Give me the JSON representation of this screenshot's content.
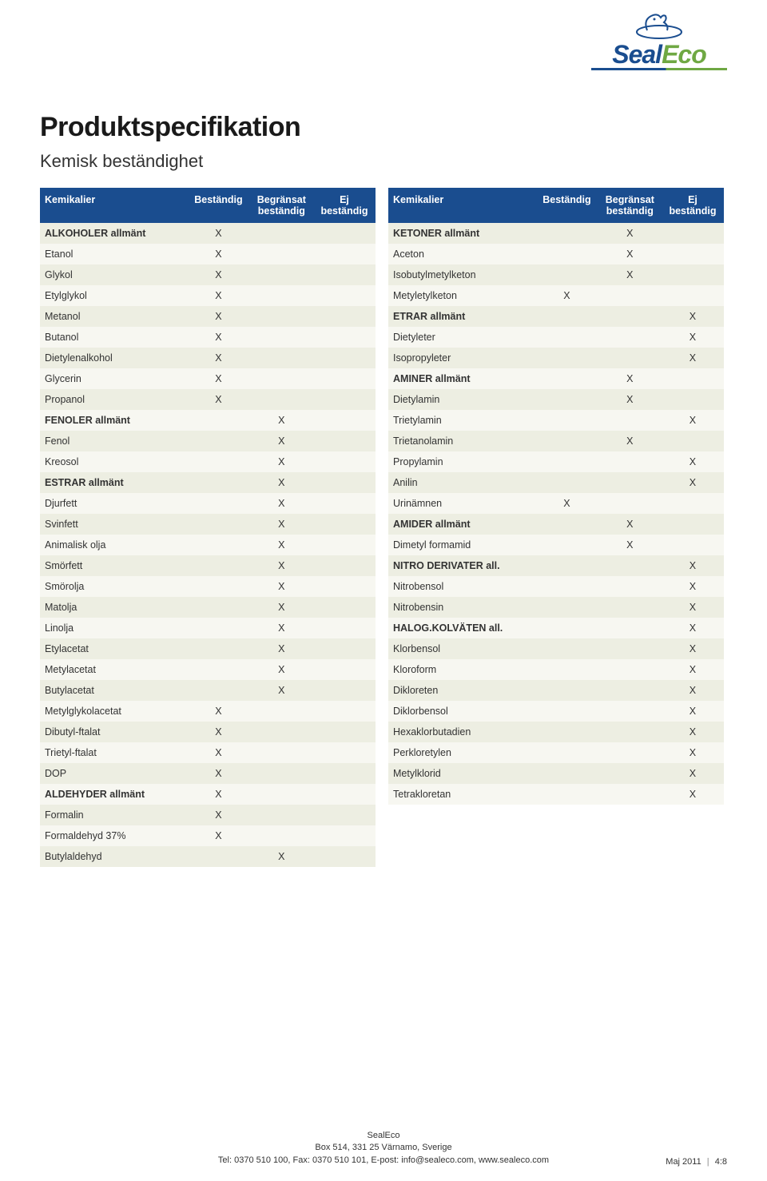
{
  "brand": {
    "seal": "Seal",
    "eco": "Eco"
  },
  "title": "Produktspecifikation",
  "subtitle": "Kemisk beständighet",
  "headers": {
    "name": "Kemikalier",
    "c1": "Beständig",
    "c2a": "Begränsat",
    "c2b": "beständig",
    "c3a": "Ej",
    "c3b": "beständig"
  },
  "leftRows": [
    {
      "name": "ALKOHOLER allmänt",
      "bold": true,
      "c1": "X",
      "c2": "",
      "c3": ""
    },
    {
      "name": "Etanol",
      "c1": "X",
      "c2": "",
      "c3": ""
    },
    {
      "name": "Glykol",
      "c1": "X",
      "c2": "",
      "c3": ""
    },
    {
      "name": "Etylglykol",
      "c1": "X",
      "c2": "",
      "c3": ""
    },
    {
      "name": "Metanol",
      "c1": "X",
      "c2": "",
      "c3": ""
    },
    {
      "name": "Butanol",
      "c1": "X",
      "c2": "",
      "c3": ""
    },
    {
      "name": "Dietylenalkohol",
      "c1": "X",
      "c2": "",
      "c3": ""
    },
    {
      "name": "Glycerin",
      "c1": "X",
      "c2": "",
      "c3": ""
    },
    {
      "name": "Propanol",
      "c1": "X",
      "c2": "",
      "c3": ""
    },
    {
      "name": "FENOLER allmänt",
      "bold": true,
      "c1": "",
      "c2": "X",
      "c3": ""
    },
    {
      "name": "Fenol",
      "c1": "",
      "c2": "X",
      "c3": ""
    },
    {
      "name": "Kreosol",
      "c1": "",
      "c2": "X",
      "c3": ""
    },
    {
      "name": "ESTRAR allmänt",
      "bold": true,
      "c1": "",
      "c2": "X",
      "c3": ""
    },
    {
      "name": "Djurfett",
      "c1": "",
      "c2": "X",
      "c3": ""
    },
    {
      "name": "Svinfett",
      "c1": "",
      "c2": "X",
      "c3": ""
    },
    {
      "name": "Animalisk olja",
      "c1": "",
      "c2": "X",
      "c3": ""
    },
    {
      "name": "Smörfett",
      "c1": "",
      "c2": "X",
      "c3": ""
    },
    {
      "name": "Smörolja",
      "c1": "",
      "c2": "X",
      "c3": ""
    },
    {
      "name": "Matolja",
      "c1": "",
      "c2": "X",
      "c3": ""
    },
    {
      "name": "Linolja",
      "c1": "",
      "c2": "X",
      "c3": ""
    },
    {
      "name": "Etylacetat",
      "c1": "",
      "c2": "X",
      "c3": ""
    },
    {
      "name": "Metylacetat",
      "c1": "",
      "c2": "X",
      "c3": ""
    },
    {
      "name": "Butylacetat",
      "c1": "",
      "c2": "X",
      "c3": ""
    },
    {
      "name": "Metylglykolacetat",
      "c1": "X",
      "c2": "",
      "c3": ""
    },
    {
      "name": "Dibutyl-ftalat",
      "c1": "X",
      "c2": "",
      "c3": ""
    },
    {
      "name": "Trietyl-ftalat",
      "c1": "X",
      "c2": "",
      "c3": ""
    },
    {
      "name": "DOP",
      "c1": "X",
      "c2": "",
      "c3": ""
    },
    {
      "name": "ALDEHYDER allmänt",
      "bold": true,
      "c1": "X",
      "c2": "",
      "c3": ""
    },
    {
      "name": "Formalin",
      "c1": "X",
      "c2": "",
      "c3": ""
    },
    {
      "name": "Formaldehyd 37%",
      "c1": "X",
      "c2": "",
      "c3": ""
    },
    {
      "name": "Butylaldehyd",
      "c1": "",
      "c2": "X",
      "c3": ""
    }
  ],
  "rightRows": [
    {
      "name": "KETONER allmänt",
      "bold": true,
      "c1": "",
      "c2": "X",
      "c3": ""
    },
    {
      "name": "Aceton",
      "c1": "",
      "c2": "X",
      "c3": ""
    },
    {
      "name": "Isobutylmetylketon",
      "c1": "",
      "c2": "X",
      "c3": ""
    },
    {
      "name": "Metyletylketon",
      "c1": "X",
      "c2": "",
      "c3": ""
    },
    {
      "name": "ETRAR allmänt",
      "bold": true,
      "c1": "",
      "c2": "",
      "c3": "X"
    },
    {
      "name": "Dietyleter",
      "c1": "",
      "c2": "",
      "c3": "X"
    },
    {
      "name": "Isopropyleter",
      "c1": "",
      "c2": "",
      "c3": "X"
    },
    {
      "name": "AMINER allmänt",
      "bold": true,
      "c1": "",
      "c2": "X",
      "c3": ""
    },
    {
      "name": "Dietylamin",
      "c1": "",
      "c2": "X",
      "c3": ""
    },
    {
      "name": "Trietylamin",
      "c1": "",
      "c2": "",
      "c3": "X"
    },
    {
      "name": "Trietanolamin",
      "c1": "",
      "c2": "X",
      "c3": ""
    },
    {
      "name": "Propylamin",
      "c1": "",
      "c2": "",
      "c3": "X"
    },
    {
      "name": "Anilin",
      "c1": "",
      "c2": "",
      "c3": "X"
    },
    {
      "name": "Urinämnen",
      "c1": "X",
      "c2": "",
      "c3": ""
    },
    {
      "name": "AMIDER allmänt",
      "bold": true,
      "c1": "",
      "c2": "X",
      "c3": ""
    },
    {
      "name": "Dimetyl formamid",
      "c1": "",
      "c2": "X",
      "c3": ""
    },
    {
      "name": "NITRO DERIVATER all.",
      "bold": true,
      "c1": "",
      "c2": "",
      "c3": "X"
    },
    {
      "name": "Nitrobensol",
      "c1": "",
      "c2": "",
      "c3": "X"
    },
    {
      "name": "Nitrobensin",
      "c1": "",
      "c2": "",
      "c3": "X"
    },
    {
      "name": "HALOG.KOLVÄTEN all.",
      "bold": true,
      "c1": "",
      "c2": "",
      "c3": "X"
    },
    {
      "name": "Klorbensol",
      "c1": "",
      "c2": "",
      "c3": "X"
    },
    {
      "name": "Kloroform",
      "c1": "",
      "c2": "",
      "c3": "X"
    },
    {
      "name": "Dikloreten",
      "c1": "",
      "c2": "",
      "c3": "X"
    },
    {
      "name": "Diklorbensol",
      "c1": "",
      "c2": "",
      "c3": "X"
    },
    {
      "name": "Hexaklorbutadien",
      "c1": "",
      "c2": "",
      "c3": "X"
    },
    {
      "name": "Perkloretylen",
      "c1": "",
      "c2": "",
      "c3": "X"
    },
    {
      "name": "Metylklorid",
      "c1": "",
      "c2": "",
      "c3": "X"
    },
    {
      "name": "Tetrakloretan",
      "c1": "",
      "c2": "",
      "c3": "X"
    }
  ],
  "footer": {
    "company": "SealEco",
    "address": "Box 514, 331 25 Värnamo, Sverige",
    "contact": "Tel: 0370 510 100, Fax: 0370 510 101, E-post: info@sealeco.com, www.sealeco.com",
    "date": "Maj 2011",
    "page": "4:8"
  },
  "colors": {
    "header_bg": "#1a4d8f",
    "header_text": "#ffffff",
    "row_odd": "#edeee2",
    "row_even": "#f7f7f1",
    "brand_blue": "#1a4d8f",
    "brand_green": "#6fa843"
  }
}
